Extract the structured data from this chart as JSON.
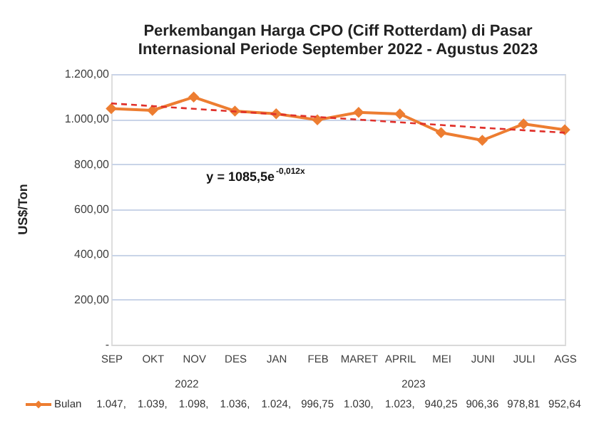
{
  "chart_data": {
    "type": "line",
    "title": [
      "Perkembangan Harga CPO (Ciff Rotterdam) di Pasar",
      "Internasional Periode September 2022 - Agustus 2023"
    ],
    "ylabel": "US$/Ton",
    "categories": [
      "SEP",
      "OKT",
      "NOV",
      "DES",
      "JAN",
      "FEB",
      "MARET",
      "APRIL",
      "MEI",
      "JUNI",
      "JULI",
      "AGS"
    ],
    "series": [
      {
        "name": "Bulan",
        "color": "#ed7d31",
        "marker": "diamond",
        "line_style": "solid",
        "values": [
          1047,
          1039,
          1098,
          1036,
          1024,
          996.75,
          1030,
          1023,
          940.25,
          906.36,
          978.81,
          952.64
        ],
        "value_labels": [
          "1.047,",
          "1.039,",
          "1.098,",
          "1.036,",
          "1.024,",
          "996,75",
          "1.030,",
          "1.023,",
          "940,25",
          "906,36",
          "978,81",
          "952,64"
        ]
      },
      {
        "type": "line",
        "color": "#e0302a",
        "line_style": "dashed",
        "marker": "none",
        "values": [
          1070,
          1058,
          1046,
          1034,
          1022,
          1010,
          998,
          986,
          974,
          962,
          951,
          940
        ]
      }
    ],
    "ylim": [
      0,
      1200
    ],
    "yticks": [
      {
        "value": 0,
        "label": "-"
      },
      {
        "value": 200,
        "label": "200,00"
      },
      {
        "value": 400,
        "label": "400,00"
      },
      {
        "value": 600,
        "label": "600,00"
      },
      {
        "value": 800,
        "label": "800,00"
      },
      {
        "value": 1000,
        "label": "1.000,00"
      },
      {
        "value": 1200,
        "label": "1.200,00"
      }
    ],
    "grid": "y",
    "legend": "bottom",
    "annotations": [
      "y = 1085,5e$^{-0,012x}$",
      "2022",
      "2023"
    ]
  }
}
